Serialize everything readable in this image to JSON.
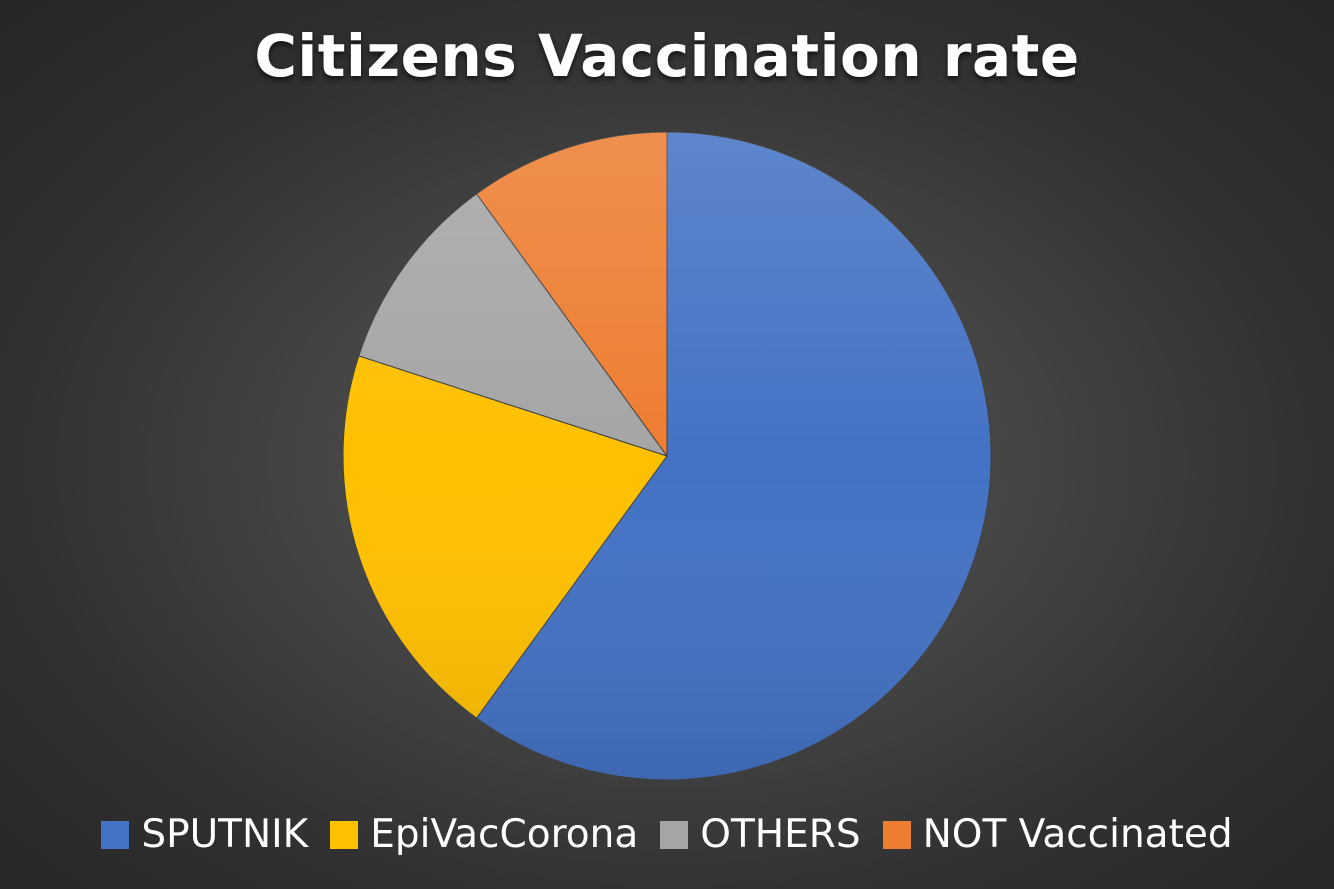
{
  "chart_data": {
    "type": "pie",
    "title": "Citizens Vaccination rate",
    "categories": [
      "SPUTNIK",
      "EpiVacCorona",
      "OTHERS",
      "NOT Vaccinated"
    ],
    "values": [
      60,
      20,
      10,
      10
    ],
    "colors": [
      "#4472C4",
      "#FFC000",
      "#A5A5A5",
      "#ED7D31"
    ],
    "legend_position": "bottom",
    "start_angle_deg": 0,
    "direction": "clockwise"
  }
}
